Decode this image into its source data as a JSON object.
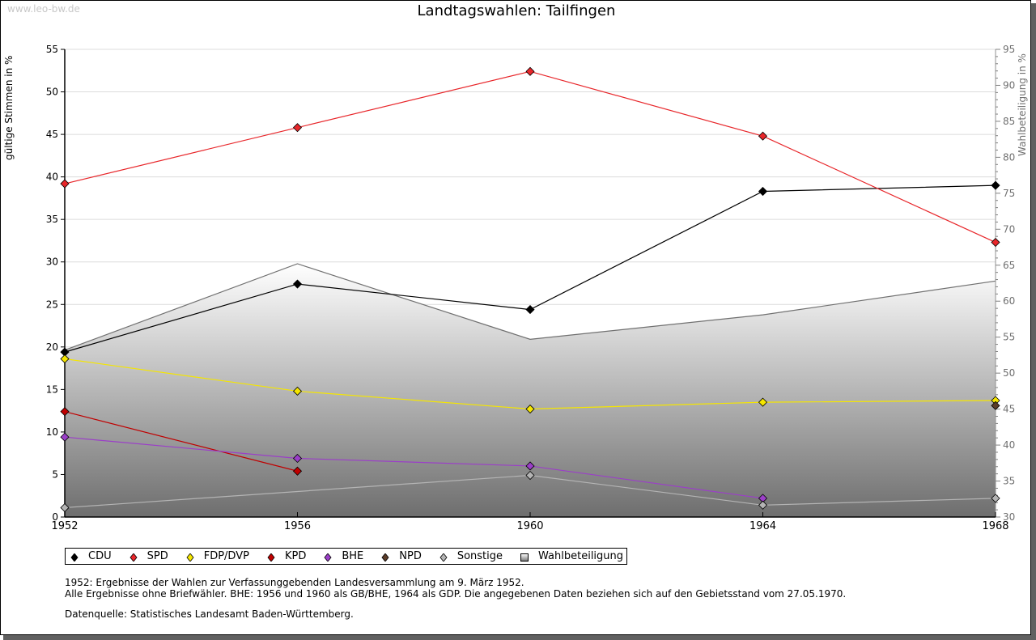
{
  "watermark": "www.leo-bw.de",
  "chart_data": {
    "type": "line",
    "title": "Landtagswahlen: Tailfingen",
    "xlabel": "",
    "ylabel": "gültige Stimmen in %",
    "ylabel_right": "Wahlbeteiligung in %",
    "x": [
      1952,
      1956,
      1960,
      1964,
      1968
    ],
    "x_tick_labels": [
      "1952",
      "1956",
      "1960",
      "1964",
      "1968"
    ],
    "ylim": [
      0,
      55
    ],
    "y_ticks": [
      0,
      5,
      10,
      15,
      20,
      25,
      30,
      35,
      40,
      45,
      50,
      55
    ],
    "ylim_right": [
      30,
      95
    ],
    "y_ticks_right": [
      30,
      35,
      40,
      45,
      50,
      55,
      60,
      65,
      70,
      75,
      80,
      85,
      90,
      95
    ],
    "grid": true,
    "legend_position": "bottom",
    "series": [
      {
        "name": "CDU",
        "color": "#000000",
        "axis": "left",
        "values": [
          19.4,
          27.4,
          24.4,
          38.3,
          39.0
        ]
      },
      {
        "name": "SPD",
        "color": "#e8262a",
        "axis": "left",
        "values": [
          39.2,
          45.8,
          52.4,
          44.8,
          32.3
        ]
      },
      {
        "name": "FDP/DVP",
        "color": "#f5e600",
        "axis": "left",
        "values": [
          18.6,
          14.8,
          12.7,
          13.5,
          13.7
        ]
      },
      {
        "name": "KPD",
        "color": "#c00000",
        "axis": "left",
        "values": [
          12.4,
          5.4,
          null,
          null,
          null
        ]
      },
      {
        "name": "BHE",
        "color": "#9b3fc8",
        "axis": "left",
        "values": [
          9.4,
          6.9,
          6.0,
          2.2,
          null
        ]
      },
      {
        "name": "NPD",
        "color": "#5a3c28",
        "axis": "left",
        "values": [
          null,
          null,
          null,
          null,
          13.1
        ]
      },
      {
        "name": "Sonstige",
        "color": "#b4b4b4",
        "axis": "left",
        "values": [
          1.1,
          3.0,
          4.9,
          1.4,
          2.2
        ]
      },
      {
        "name": "Wahlbeteiligung",
        "color": "#808080",
        "axis": "right",
        "type": "area",
        "values": [
          53.2,
          65.2,
          54.7,
          58.1,
          62.8
        ]
      }
    ]
  },
  "legend": [
    {
      "label": "CDU",
      "symbol": "diamond",
      "color": "#000000"
    },
    {
      "label": "SPD",
      "symbol": "diamond",
      "color": "#e8262a"
    },
    {
      "label": "FDP/DVP",
      "symbol": "diamond",
      "color": "#f5e600"
    },
    {
      "label": "KPD",
      "symbol": "diamond",
      "color": "#c00000"
    },
    {
      "label": "BHE",
      "symbol": "diamond",
      "color": "#9b3fc8"
    },
    {
      "label": "NPD",
      "symbol": "diamond",
      "color": "#5a3c28"
    },
    {
      "label": "Sonstige",
      "symbol": "diamond",
      "color": "#b4b4b4"
    },
    {
      "label": "Wahlbeteiligung",
      "symbol": "square",
      "color": "#a0a0a0"
    }
  ],
  "notes": [
    "1952: Ergebnisse der Wahlen zur Verfassunggebenden Landesversammlung am 9. März 1952.",
    "Alle Ergebnisse ohne Briefwähler. BHE: 1956 und 1960 als GB/BHE, 1964 als GDP. Die angegebenen Daten beziehen sich auf den Gebietsstand vom 27.05.1970."
  ],
  "source": "Datenquelle: Statistisches Landesamt Baden-Württemberg."
}
